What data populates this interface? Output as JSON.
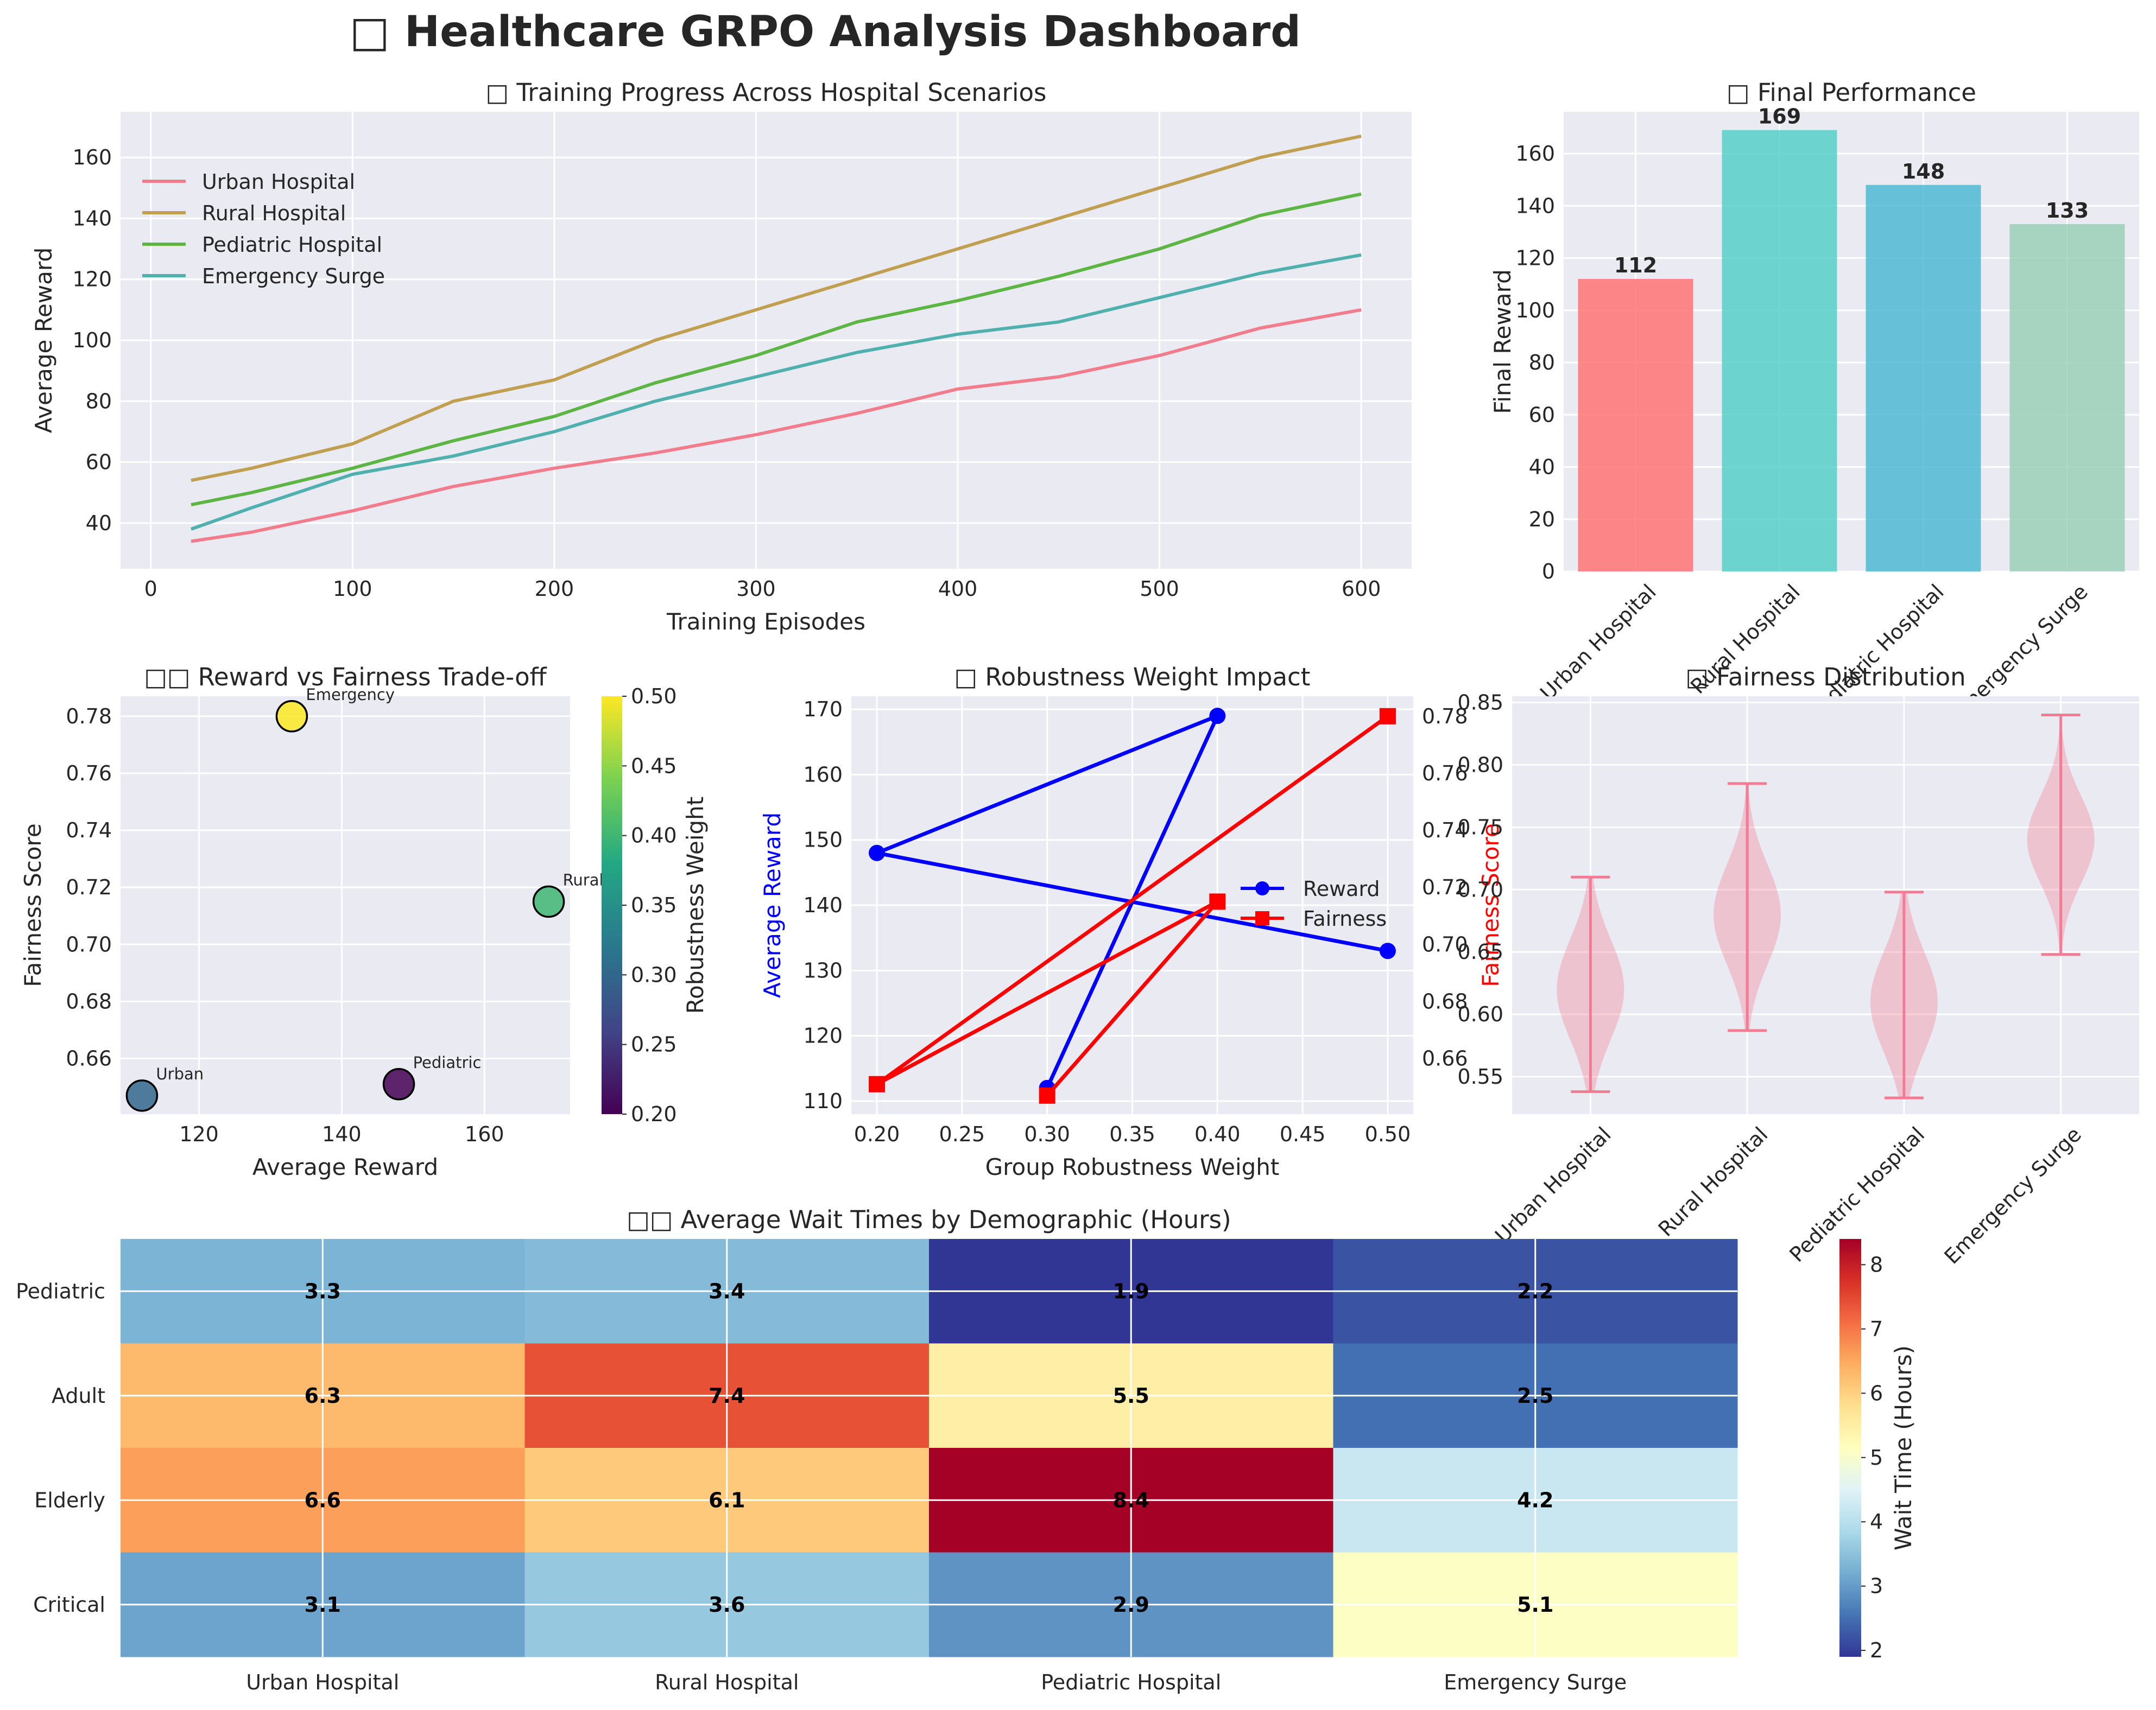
{
  "title": "□ Healthcare GRPO Analysis Dashboard",
  "colors": {
    "panel_bg": "#EAEAF2",
    "grid": "#FFFFFF",
    "urban": "#FF6B6B",
    "rural": "#4ECDC4",
    "pediatric": "#45B7D1",
    "emergency": "#96CEB4",
    "line_urban": "#F07C8C",
    "line_rural": "#C0A050",
    "line_pediatric": "#5DB544",
    "line_emergency": "#4FB0AE",
    "reward": "#0000FF",
    "fairness": "#FF0000",
    "violin": "#F37B93"
  },
  "chart_data": [
    {
      "id": "training",
      "type": "line",
      "title": "□ Training Progress Across Hospital Scenarios",
      "xlabel": "Training Episodes",
      "ylabel": "Average Reward",
      "xlim": [
        -15,
        625
      ],
      "ylim": [
        25,
        175
      ],
      "xticks": [
        0,
        100,
        200,
        300,
        400,
        500,
        600
      ],
      "yticks": [
        40,
        60,
        80,
        100,
        120,
        140,
        160
      ],
      "legend": "top-left",
      "x": [
        20,
        50,
        100,
        150,
        200,
        250,
        300,
        350,
        400,
        450,
        500,
        550,
        600
      ],
      "series": [
        {
          "name": "Urban Hospital",
          "values": [
            34,
            37,
            44,
            52,
            58,
            63,
            69,
            76,
            84,
            88,
            95,
            104,
            110
          ]
        },
        {
          "name": "Rural Hospital",
          "values": [
            54,
            58,
            66,
            80,
            87,
            100,
            110,
            120,
            130,
            140,
            150,
            160,
            167
          ]
        },
        {
          "name": "Pediatric Hospital",
          "values": [
            46,
            50,
            58,
            67,
            75,
            86,
            95,
            106,
            113,
            121,
            130,
            141,
            148
          ]
        },
        {
          "name": "Emergency Surge",
          "values": [
            38,
            45,
            56,
            62,
            70,
            80,
            88,
            96,
            102,
            106,
            114,
            122,
            128
          ]
        }
      ]
    },
    {
      "id": "final",
      "type": "bar",
      "title": "□ Final Performance",
      "ylabel": "Final Reward",
      "ylim": [
        0,
        176
      ],
      "yticks": [
        0,
        20,
        40,
        60,
        80,
        100,
        120,
        140,
        160
      ],
      "categories": [
        "Urban Hospital",
        "Rural Hospital",
        "Pediatric Hospital",
        "Emergency Surge"
      ],
      "values": [
        112,
        169,
        148,
        133
      ],
      "value_labels": [
        "112",
        "169",
        "148",
        "133"
      ]
    },
    {
      "id": "tradeoff",
      "type": "scatter",
      "title": "□□ Reward vs Fairness Trade-off",
      "xlabel": "Average Reward",
      "ylabel": "Fairness Score",
      "xlim": [
        109,
        172
      ],
      "ylim": [
        0.6405,
        0.787
      ],
      "xticks": [
        120,
        140,
        160
      ],
      "yticks": [
        0.66,
        0.68,
        0.7,
        0.72,
        0.74,
        0.76,
        0.78
      ],
      "colorbar_label": "Robustness Weight",
      "colorbar_range": [
        0.2,
        0.5
      ],
      "colorbar_ticks": [
        0.2,
        0.25,
        0.3,
        0.35,
        0.4,
        0.45,
        0.5
      ],
      "points": [
        {
          "label": "Urban",
          "x": 112,
          "y": 0.647,
          "weight": 0.3
        },
        {
          "label": "Rural",
          "x": 169,
          "y": 0.715,
          "weight": 0.4
        },
        {
          "label": "Pediatric",
          "x": 148,
          "y": 0.651,
          "weight": 0.2
        },
        {
          "label": "Emergency",
          "x": 133,
          "y": 0.78,
          "weight": 0.5
        }
      ]
    },
    {
      "id": "robustness",
      "type": "line",
      "title": "□ Robustness Weight Impact",
      "xlabel": "Group Robustness Weight",
      "ylabel": "Average Reward",
      "ylabel_right": "Fairness Score",
      "legend": "center-right",
      "x": [
        0.3,
        0.4,
        0.2,
        0.5
      ],
      "xlim": [
        0.185,
        0.515
      ],
      "ylim": [
        108,
        172
      ],
      "ylim_right": [
        0.6405,
        0.787
      ],
      "xticks": [
        0.2,
        0.25,
        0.3,
        0.35,
        0.4,
        0.45,
        0.5
      ],
      "yticks": [
        110,
        120,
        130,
        140,
        150,
        160,
        170
      ],
      "yticks_right": [
        0.66,
        0.68,
        0.7,
        0.72,
        0.74,
        0.76,
        0.78
      ],
      "series": [
        {
          "name": "Reward",
          "values": [
            112,
            169,
            148,
            133
          ]
        },
        {
          "name": "Fairness",
          "values": [
            0.647,
            0.715,
            0.651,
            0.78
          ]
        }
      ]
    },
    {
      "id": "violin",
      "type": "violin",
      "title": "□ Fairness Distribution",
      "ylim": [
        0.52,
        0.855
      ],
      "yticks": [
        0.55,
        0.6,
        0.65,
        0.7,
        0.75,
        0.8,
        0.85
      ],
      "categories": [
        "Urban Hospital",
        "Rural Hospital",
        "Pediatric Hospital",
        "Emergency Surge"
      ],
      "min": [
        0.538,
        0.587,
        0.533,
        0.648
      ],
      "max": [
        0.71,
        0.785,
        0.698,
        0.84
      ],
      "center": [
        0.62,
        0.68,
        0.61,
        0.74
      ],
      "spread": [
        0.04,
        0.04,
        0.04,
        0.035
      ]
    },
    {
      "id": "heatmap",
      "type": "heatmap",
      "title": "□□ Average Wait Times by Demographic (Hours)",
      "columns": [
        "Urban Hospital",
        "Rural Hospital",
        "Pediatric Hospital",
        "Emergency Surge"
      ],
      "rows": [
        "Pediatric",
        "Adult",
        "Elderly",
        "Critical"
      ],
      "values": [
        [
          3.3,
          3.4,
          1.9,
          2.2
        ],
        [
          6.3,
          7.4,
          5.5,
          2.5
        ],
        [
          6.6,
          6.1,
          8.4,
          4.2
        ],
        [
          3.1,
          3.6,
          2.9,
          5.1
        ]
      ],
      "labels": [
        [
          "3.3",
          "3.4",
          "1.9",
          "2.2"
        ],
        [
          "6.3",
          "7.4",
          "5.5",
          "2.5"
        ],
        [
          "6.6",
          "6.1",
          "8.4",
          "4.2"
        ],
        [
          "3.1",
          "3.6",
          "2.9",
          "5.1"
        ]
      ],
      "colorbar_label": "Wait Time (Hours)",
      "colorbar_range": [
        1.9,
        8.4
      ],
      "colorbar_ticks": [
        2,
        3,
        4,
        5,
        6,
        7,
        8
      ],
      "colormap": "RdYlBu_r"
    }
  ]
}
